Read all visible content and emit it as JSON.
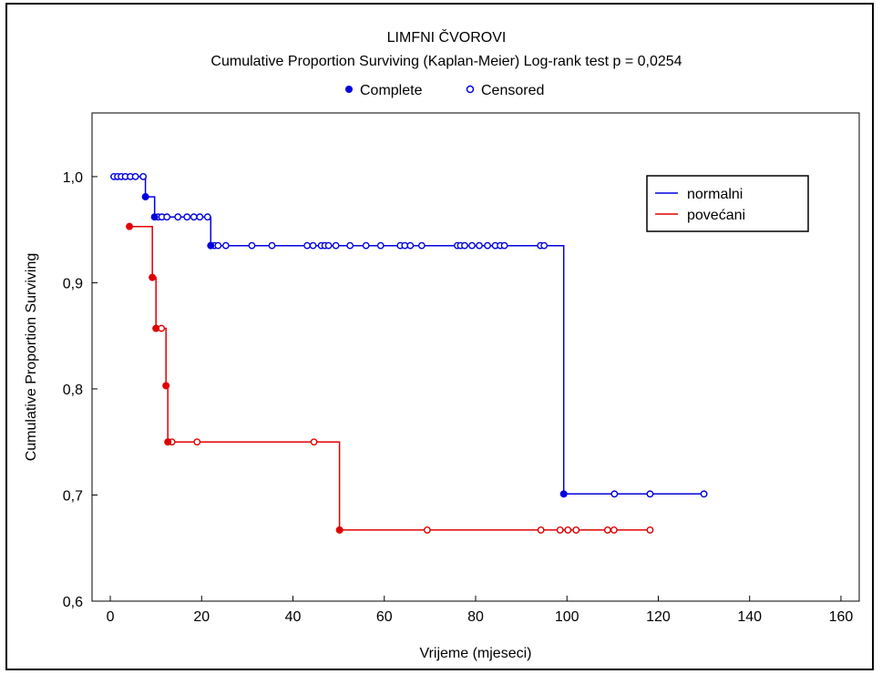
{
  "chart_data": {
    "type": "line",
    "title": "LIMFNI ČVOROVI",
    "subtitle": "Cumulative Proportion Surviving (Kaplan-Meier)  Log-rank test  p = 0,0254",
    "marker_legend": [
      {
        "label": "Complete",
        "marker": "filled-circle"
      },
      {
        "label": "Censored",
        "marker": "open-circle"
      }
    ],
    "xlabel": "Vrijeme (mjeseci)",
    "ylabel": "Cumulative Proportion Surviving",
    "xlim": [
      -4,
      164
    ],
    "ylim": [
      0.6,
      1.06
    ],
    "x_ticks": [
      0,
      20,
      40,
      60,
      80,
      100,
      120,
      140,
      160
    ],
    "x_tick_labels": [
      "0",
      "20",
      "40",
      "60",
      "80",
      "100",
      "120",
      "140",
      "160"
    ],
    "y_ticks": [
      0.6,
      0.7,
      0.8,
      0.9,
      1.0
    ],
    "y_tick_labels": [
      "0,6",
      "0,7",
      "0,8",
      "0,9",
      "1,0"
    ],
    "grid": false,
    "legend_position": "top-right",
    "series": [
      {
        "name": "normalni",
        "color": "#0000e0",
        "steps": [
          [
            0,
            1.0
          ],
          [
            7.7,
            0.981
          ],
          [
            9.7,
            0.962
          ],
          [
            22.0,
            0.935
          ],
          [
            99.3,
            0.701
          ],
          [
            130,
            0.701
          ]
        ],
        "complete": [
          [
            7.7,
            0.981
          ],
          [
            9.7,
            0.962
          ],
          [
            22.0,
            0.935
          ],
          [
            99.3,
            0.701
          ]
        ],
        "censored": [
          [
            0.8,
            1.0
          ],
          [
            1.6,
            1.0
          ],
          [
            2.4,
            1.0
          ],
          [
            3.3,
            1.0
          ],
          [
            4.4,
            1.0
          ],
          [
            5.5,
            1.0
          ],
          [
            7.2,
            1.0
          ],
          [
            10.5,
            0.962
          ],
          [
            11.3,
            0.962
          ],
          [
            12.4,
            0.962
          ],
          [
            14.8,
            0.962
          ],
          [
            16.8,
            0.962
          ],
          [
            18.3,
            0.962
          ],
          [
            19.6,
            0.962
          ],
          [
            21.3,
            0.962
          ],
          [
            22.8,
            0.935
          ],
          [
            23.6,
            0.935
          ],
          [
            25.3,
            0.935
          ],
          [
            31.0,
            0.935
          ],
          [
            35.4,
            0.935
          ],
          [
            43.1,
            0.935
          ],
          [
            44.4,
            0.935
          ],
          [
            46.2,
            0.935
          ],
          [
            47.0,
            0.935
          ],
          [
            47.8,
            0.935
          ],
          [
            49.4,
            0.935
          ],
          [
            52.5,
            0.935
          ],
          [
            56.0,
            0.935
          ],
          [
            59.2,
            0.935
          ],
          [
            63.5,
            0.935
          ],
          [
            64.5,
            0.935
          ],
          [
            65.7,
            0.935
          ],
          [
            68.2,
            0.935
          ],
          [
            76.0,
            0.935
          ],
          [
            76.7,
            0.935
          ],
          [
            77.6,
            0.935
          ],
          [
            79.2,
            0.935
          ],
          [
            80.8,
            0.935
          ],
          [
            82.6,
            0.935
          ],
          [
            84.3,
            0.935
          ],
          [
            85.4,
            0.935
          ],
          [
            86.3,
            0.935
          ],
          [
            94.2,
            0.935
          ],
          [
            95.0,
            0.935
          ],
          [
            110.4,
            0.701
          ],
          [
            118.2,
            0.701
          ],
          [
            130.0,
            0.701
          ]
        ]
      },
      {
        "name": "povećani",
        "color": "#e00000",
        "steps": [
          [
            4.2,
            0.953
          ],
          [
            9.2,
            0.905
          ],
          [
            10.0,
            0.857
          ],
          [
            12.2,
            0.803
          ],
          [
            12.6,
            0.75
          ],
          [
            50.2,
            0.667
          ],
          [
            118.2,
            0.667
          ]
        ],
        "complete": [
          [
            4.2,
            0.953
          ],
          [
            9.2,
            0.905
          ],
          [
            10.0,
            0.857
          ],
          [
            12.2,
            0.803
          ],
          [
            12.6,
            0.75
          ],
          [
            50.2,
            0.667
          ]
        ],
        "censored": [
          [
            11.2,
            0.857
          ],
          [
            13.5,
            0.75
          ],
          [
            19.0,
            0.75
          ],
          [
            44.6,
            0.75
          ],
          [
            69.4,
            0.667
          ],
          [
            94.3,
            0.667
          ],
          [
            98.5,
            0.667
          ],
          [
            100.2,
            0.667
          ],
          [
            102.0,
            0.667
          ],
          [
            108.9,
            0.667
          ],
          [
            110.3,
            0.667
          ],
          [
            118.2,
            0.667
          ]
        ]
      }
    ]
  }
}
